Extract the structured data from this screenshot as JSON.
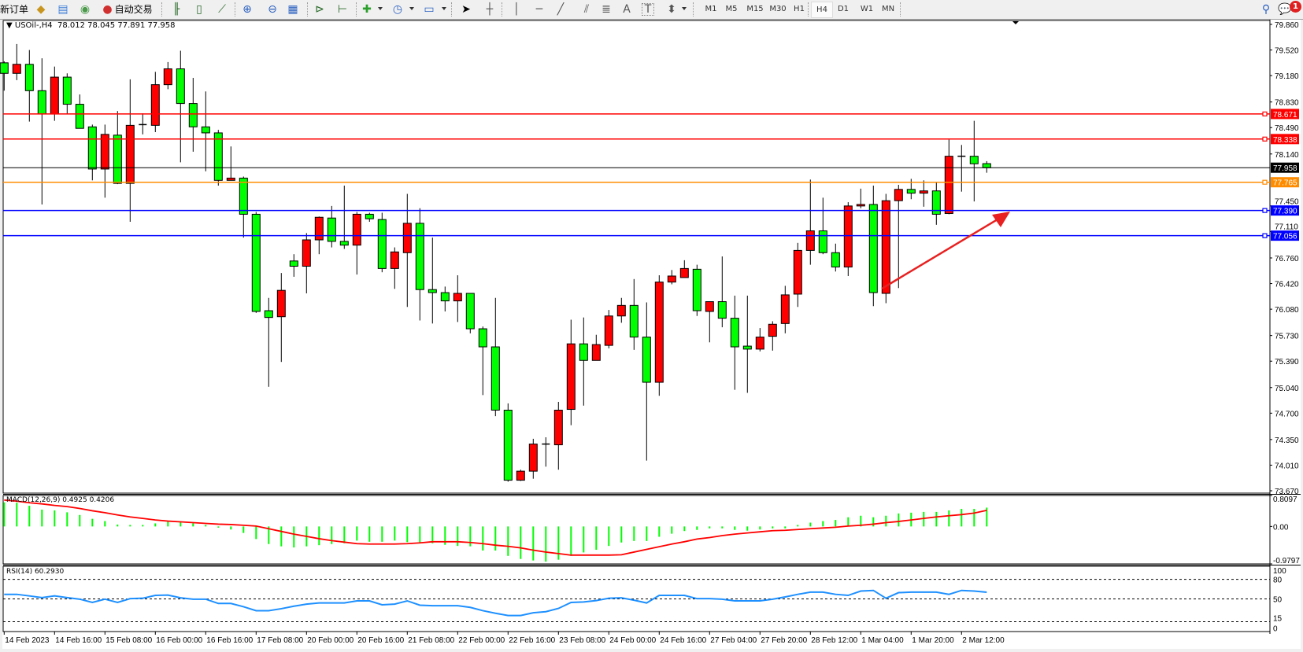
{
  "toolbar": {
    "new_order": "新订单",
    "auto_trading": "自动交易",
    "icons": [
      "bell-icon",
      "navigator-icon",
      "signal-icon",
      "auto-trading-icon",
      "bar-chart-icon",
      "candle-chart-icon",
      "line-chart-icon",
      "zoom-in-icon",
      "zoom-out-icon",
      "tile-windows-icon",
      "autoscroll-icon",
      "chart-shift-icon",
      "new-chart-icon",
      "clock-icon",
      "template-icon",
      "cursor-icon",
      "crosshair-icon",
      "vertical-line-icon",
      "horizontal-line-icon",
      "trendline-icon",
      "equidistant-channel-icon",
      "fibonacci-icon",
      "text-icon",
      "text-label-icon",
      "arrows-icon"
    ],
    "text_tool": "A",
    "label_tool": "T",
    "timeframes": [
      "M1",
      "M5",
      "M15",
      "M30",
      "H1",
      "H4",
      "D1",
      "W1",
      "MN"
    ],
    "active_timeframe": "H4",
    "notification_count": "1"
  },
  "header": {
    "symbol": "USOil-,H4",
    "values": "78.012 78.045 77.891 77.958"
  },
  "colors": {
    "bull": "#ff0000",
    "bear": "#00ff00",
    "macd_hist": "#00ff00",
    "macd_signal": "#ff0000",
    "rsi": "#1e90ff"
  },
  "price_axis": [
    "79.860",
    "79.520",
    "79.180",
    "78.830",
    "78.490",
    "78.140",
    "77.450",
    "77.110",
    "76.760",
    "76.420",
    "76.080",
    "75.730",
    "75.390",
    "75.040",
    "74.700",
    "74.350",
    "74.010",
    "73.670"
  ],
  "levels": [
    {
      "price": 78.671,
      "label": "78.671",
      "color": "#ff0000"
    },
    {
      "price": 78.338,
      "label": "78.338",
      "color": "#ff0000"
    },
    {
      "price": 77.958,
      "label": "77.958",
      "color": "#000000"
    },
    {
      "price": 77.765,
      "label": "77.765",
      "color": "#ff8c00"
    },
    {
      "price": 77.39,
      "label": "77.390",
      "color": "#0000ff"
    },
    {
      "price": 77.056,
      "label": "77.056",
      "color": "#0000ff"
    }
  ],
  "candles": [
    [
      79.35,
      79.37,
      78.98,
      79.21
    ],
    [
      79.21,
      79.6,
      79.12,
      79.33
    ],
    [
      79.33,
      79.52,
      78.57,
      78.98
    ],
    [
      78.98,
      79.41,
      77.47,
      78.67
    ],
    [
      78.67,
      79.3,
      78.58,
      79.16
    ],
    [
      79.16,
      79.21,
      78.67,
      78.8
    ],
    [
      78.8,
      78.93,
      78.48,
      78.48
    ],
    [
      78.5,
      78.53,
      77.79,
      77.94
    ],
    [
      77.94,
      78.53,
      77.56,
      78.4
    ],
    [
      78.39,
      78.71,
      77.74,
      77.75
    ],
    [
      77.75,
      79.13,
      77.24,
      78.52
    ],
    [
      78.53,
      78.68,
      78.4,
      78.53
    ],
    [
      78.52,
      79.23,
      78.43,
      79.06
    ],
    [
      79.06,
      79.36,
      79.0,
      79.27
    ],
    [
      79.27,
      79.51,
      78.03,
      78.81
    ],
    [
      78.81,
      79.15,
      78.17,
      78.5
    ],
    [
      78.5,
      78.97,
      77.91,
      78.42
    ],
    [
      78.42,
      78.46,
      77.72,
      77.79
    ],
    [
      77.79,
      78.24,
      77.79,
      77.82
    ],
    [
      77.82,
      77.84,
      77.03,
      77.34
    ],
    [
      77.34,
      77.37,
      76.03,
      76.05
    ],
    [
      76.06,
      76.23,
      75.05,
      75.97
    ],
    [
      75.98,
      76.56,
      75.38,
      76.33
    ],
    [
      76.72,
      76.81,
      76.51,
      76.65
    ],
    [
      76.65,
      77.09,
      76.29,
      77.0
    ],
    [
      77.0,
      77.31,
      76.81,
      77.3
    ],
    [
      77.29,
      77.45,
      76.9,
      76.98
    ],
    [
      76.98,
      77.72,
      76.88,
      76.93
    ],
    [
      76.93,
      77.37,
      76.54,
      77.34
    ],
    [
      77.34,
      77.36,
      77.24,
      77.28
    ],
    [
      77.27,
      77.36,
      76.57,
      76.62
    ],
    [
      76.62,
      76.9,
      76.35,
      76.84
    ],
    [
      76.83,
      77.61,
      76.11,
      77.22
    ],
    [
      77.22,
      77.42,
      75.93,
      76.34
    ],
    [
      76.34,
      77.03,
      75.89,
      76.3
    ],
    [
      76.3,
      76.38,
      76.05,
      76.19
    ],
    [
      76.19,
      76.53,
      75.91,
      76.29
    ],
    [
      76.29,
      76.29,
      75.76,
      75.82
    ],
    [
      75.82,
      75.85,
      74.94,
      75.58
    ],
    [
      75.58,
      76.23,
      74.66,
      74.74
    ],
    [
      74.74,
      74.83,
      73.79,
      73.81
    ],
    [
      73.81,
      73.95,
      73.8,
      73.93
    ],
    [
      73.93,
      74.36,
      73.83,
      74.29
    ],
    [
      74.29,
      74.38,
      73.99,
      74.29
    ],
    [
      74.28,
      74.85,
      73.95,
      74.74
    ],
    [
      74.75,
      75.94,
      74.54,
      75.62
    ],
    [
      75.62,
      75.97,
      74.8,
      75.4
    ],
    [
      75.4,
      75.74,
      75.4,
      75.61
    ],
    [
      75.6,
      76.07,
      75.56,
      75.99
    ],
    [
      75.99,
      76.23,
      75.9,
      76.13
    ],
    [
      76.13,
      76.48,
      75.54,
      75.71
    ],
    [
      75.71,
      76.17,
      74.07,
      75.11
    ],
    [
      75.11,
      76.53,
      74.93,
      76.44
    ],
    [
      76.44,
      76.6,
      76.41,
      76.52
    ],
    [
      76.5,
      76.73,
      76.5,
      76.62
    ],
    [
      76.61,
      76.67,
      75.99,
      76.06
    ],
    [
      76.05,
      76.18,
      75.64,
      76.18
    ],
    [
      76.18,
      76.78,
      75.84,
      75.96
    ],
    [
      75.96,
      76.26,
      75.01,
      75.58
    ],
    [
      75.59,
      76.26,
      74.97,
      75.55
    ],
    [
      75.55,
      75.83,
      75.52,
      75.71
    ],
    [
      75.72,
      75.92,
      75.53,
      75.88
    ],
    [
      75.89,
      76.39,
      75.76,
      76.27
    ],
    [
      76.28,
      76.96,
      76.11,
      76.86
    ],
    [
      76.86,
      77.8,
      76.67,
      77.12
    ],
    [
      77.12,
      77.56,
      76.81,
      76.83
    ],
    [
      76.83,
      76.95,
      76.58,
      76.64
    ],
    [
      76.64,
      77.5,
      76.52,
      77.45
    ],
    [
      77.45,
      77.68,
      77.42,
      77.47
    ],
    [
      77.47,
      77.72,
      76.12,
      76.3
    ],
    [
      76.29,
      77.61,
      76.16,
      77.52
    ],
    [
      77.52,
      77.73,
      76.36,
      77.67
    ],
    [
      77.67,
      77.81,
      77.54,
      77.62
    ],
    [
      77.62,
      77.79,
      77.44,
      77.65
    ],
    [
      77.65,
      77.76,
      77.2,
      77.34
    ],
    [
      77.35,
      78.33,
      77.34,
      78.11
    ],
    [
      78.11,
      78.26,
      77.64,
      78.11
    ],
    [
      78.11,
      78.58,
      77.51,
      78.01
    ],
    [
      78.012,
      78.045,
      77.891,
      77.958
    ]
  ],
  "macd": {
    "label": "MACD(12,26,9) 0.4925 0.4206",
    "axis": [
      "0.8097",
      "0.00",
      "-0.9797"
    ],
    "max": 0.8097,
    "min": -0.9797,
    "main": [
      0.63,
      0.62,
      0.54,
      0.44,
      0.42,
      0.37,
      0.3,
      0.2,
      0.14,
      0.05,
      0.04,
      0.04,
      0.08,
      0.12,
      0.11,
      0.08,
      0.04,
      -0.03,
      -0.08,
      -0.17,
      -0.33,
      -0.46,
      -0.52,
      -0.55,
      -0.52,
      -0.49,
      -0.46,
      -0.44,
      -0.37,
      -0.4,
      -0.4,
      -0.37,
      -0.41,
      -0.44,
      -0.44,
      -0.48,
      -0.51,
      -0.52,
      -0.63,
      -0.63,
      -0.77,
      -0.85,
      -0.89,
      -0.92,
      -0.87,
      -0.77,
      -0.68,
      -0.61,
      -0.51,
      -0.42,
      -0.38,
      -0.38,
      -0.27,
      -0.19,
      -0.12,
      -0.09,
      -0.05,
      -0.05,
      -0.09,
      -0.11,
      -0.08,
      -0.05,
      -0.05,
      0.04,
      0.1,
      0.14,
      0.17,
      0.24,
      0.28,
      0.24,
      0.28,
      0.34,
      0.36,
      0.38,
      0.38,
      0.42,
      0.46,
      0.46,
      0.4925
    ],
    "signal": [
      0.69,
      0.66,
      0.62,
      0.59,
      0.55,
      0.52,
      0.47,
      0.41,
      0.36,
      0.3,
      0.25,
      0.21,
      0.17,
      0.14,
      0.12,
      0.1,
      0.08,
      0.06,
      0.05,
      0.03,
      0.01,
      -0.06,
      -0.13,
      -0.2,
      -0.26,
      -0.32,
      -0.37,
      -0.41,
      -0.45,
      -0.46,
      -0.46,
      -0.46,
      -0.45,
      -0.43,
      -0.4,
      -0.4,
      -0.4,
      -0.42,
      -0.45,
      -0.49,
      -0.52,
      -0.56,
      -0.62,
      -0.67,
      -0.71,
      -0.75,
      -0.75,
      -0.75,
      -0.75,
      -0.74,
      -0.67,
      -0.6,
      -0.53,
      -0.46,
      -0.4,
      -0.33,
      -0.29,
      -0.24,
      -0.2,
      -0.17,
      -0.14,
      -0.11,
      -0.1,
      -0.08,
      -0.06,
      -0.04,
      -0.02,
      0.01,
      0.03,
      0.06,
      0.1,
      0.13,
      0.17,
      0.21,
      0.25,
      0.28,
      0.31,
      0.35,
      0.4206
    ]
  },
  "rsi": {
    "label": "RSI(14) 60.2930",
    "axis": [
      "100",
      "80",
      "50",
      "15",
      "0"
    ],
    "levels": [
      80,
      50,
      15
    ],
    "values": [
      57,
      57,
      54.6,
      52,
      54.6,
      52,
      49.6,
      44.6,
      49.6,
      44.6,
      50.4,
      51,
      55.4,
      55.8,
      51.7,
      49.6,
      49.6,
      43,
      43,
      38,
      32,
      32,
      35,
      38.8,
      42,
      43.8,
      43.8,
      43.8,
      47,
      47,
      41,
      42,
      47,
      40.4,
      39.6,
      39.6,
      39.6,
      37,
      32,
      28,
      24.6,
      24.6,
      28.8,
      30.4,
      35.4,
      44.6,
      45.4,
      47.5,
      51,
      51.7,
      48,
      43.8,
      55.4,
      55.4,
      55.4,
      50.4,
      50.4,
      49.6,
      47,
      47,
      47,
      49.6,
      53,
      57,
      60.4,
      60.4,
      57,
      55.4,
      62,
      63,
      51,
      59.6,
      60.4,
      60.4,
      60.4,
      57,
      63,
      62,
      60.293
    ]
  },
  "time_axis": [
    {
      "bar": 0,
      "label": "14 Feb 2023"
    },
    {
      "bar": 4,
      "label": "14 Feb 16:00"
    },
    {
      "bar": 8,
      "label": "15 Feb 08:00"
    },
    {
      "bar": 12,
      "label": "16 Feb 00:00"
    },
    {
      "bar": 16,
      "label": "16 Feb 16:00"
    },
    {
      "bar": 20,
      "label": "17 Feb 08:00"
    },
    {
      "bar": 24,
      "label": "20 Feb 00:00"
    },
    {
      "bar": 28,
      "label": "20 Feb 16:00"
    },
    {
      "bar": 32,
      "label": "21 Feb 08:00"
    },
    {
      "bar": 36,
      "label": "22 Feb 00:00"
    },
    {
      "bar": 40,
      "label": "22 Feb 16:00"
    },
    {
      "bar": 44,
      "label": "23 Feb 08:00"
    },
    {
      "bar": 48,
      "label": "24 Feb 00:00"
    },
    {
      "bar": 52,
      "label": "24 Feb 16:00"
    },
    {
      "bar": 56,
      "label": "27 Feb 04:00"
    },
    {
      "bar": 60,
      "label": "27 Feb 20:00"
    },
    {
      "bar": 64,
      "label": "28 Feb 12:00"
    },
    {
      "bar": 68,
      "label": "1 Mar 04:00"
    },
    {
      "bar": 72,
      "label": "1 Mar 20:00"
    },
    {
      "bar": 76,
      "label": "2 Mar 12:00"
    }
  ]
}
